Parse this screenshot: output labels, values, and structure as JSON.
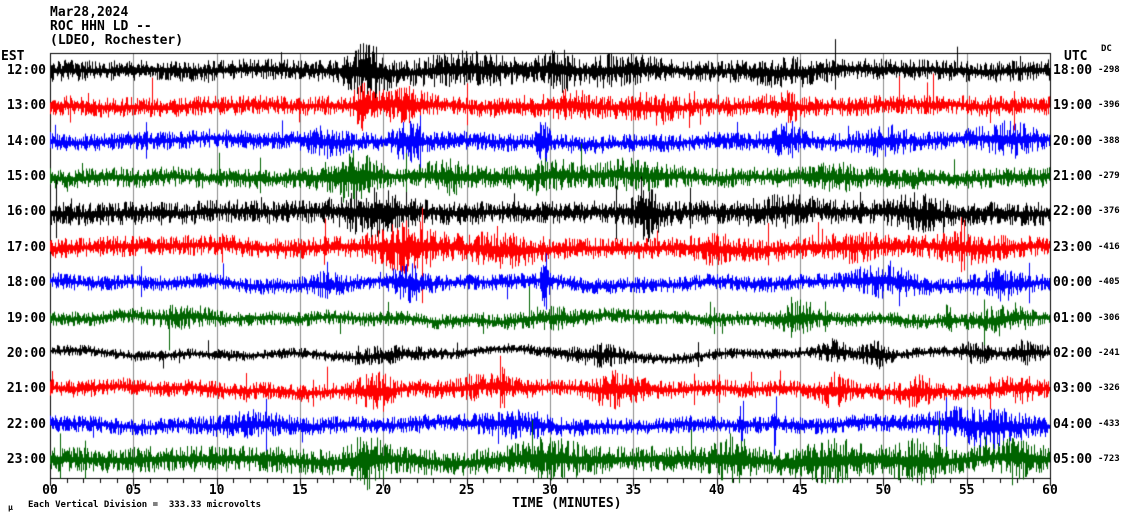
{
  "header": {
    "date": "Mar28,2024",
    "station": "ROC HHN LD --",
    "network": "(LDEO, Rochester)"
  },
  "axes": {
    "left_title": "EST",
    "right_title": "UTC",
    "dc_title": "DC",
    "x_title": "TIME (MINUTES)",
    "minute_labels": [
      "00",
      "05",
      "10",
      "15",
      "20",
      "25",
      "30",
      "35",
      "40",
      "45",
      "50",
      "55",
      "60"
    ],
    "x_min": 0,
    "x_max": 60,
    "minor_tick_every_min": 1,
    "major_tick_every_min": 5,
    "grid_every_min": 5
  },
  "footer": {
    "mu_glyph": "μ",
    "scale_note": "Each Vertical Division =  333.33 microvolts"
  },
  "colors": {
    "background": "#ffffff",
    "axis": "#000000",
    "grid": "#8c8c8c",
    "trace_cycle": [
      "#000000",
      "#ff0000",
      "#0000ff",
      "#006400"
    ]
  },
  "chart_data": {
    "type": "line",
    "xlabel": "TIME (MINUTES)",
    "x_range": [
      0,
      60
    ],
    "rows_are": "one helicorder trace per hour, colors cycle black/red/blue/green",
    "rows": [
      {
        "est": "12:00",
        "utc": "18:00",
        "dc": "-298",
        "color": "#000000",
        "base": 8.5,
        "wander": 2,
        "events": [
          {
            "t": 19,
            "a": 15,
            "w": 1.2
          },
          {
            "t": 25,
            "a": 7,
            "w": 3
          },
          {
            "t": 30.5,
            "a": 11,
            "w": 0.9
          },
          {
            "t": 34,
            "a": 6,
            "w": 2
          },
          {
            "t": 44,
            "a": 5,
            "w": 2
          }
        ]
      },
      {
        "est": "13:00",
        "utc": "19:00",
        "dc": "-396",
        "color": "#ff0000",
        "base": 8,
        "wander": 2,
        "events": [
          {
            "t": 18.7,
            "a": 16,
            "w": 0.5
          },
          {
            "t": 21,
            "a": 8,
            "w": 1.5
          },
          {
            "t": 31,
            "a": 5,
            "w": 2
          },
          {
            "t": 36,
            "a": 6,
            "w": 1.5
          },
          {
            "t": 44,
            "a": 6,
            "w": 1
          }
        ]
      },
      {
        "est": "14:00",
        "utc": "20:00",
        "dc": "-388",
        "color": "#0000ff",
        "base": 7.5,
        "wander": 2.5,
        "events": [
          {
            "t": 16.5,
            "a": 6,
            "w": 1.2
          },
          {
            "t": 21.5,
            "a": 12,
            "w": 0.8
          },
          {
            "t": 29.6,
            "a": 14,
            "w": 0.3
          },
          {
            "t": 44,
            "a": 7,
            "w": 1
          },
          {
            "t": 50,
            "a": 6,
            "w": 1.5
          },
          {
            "t": 57.5,
            "a": 8,
            "w": 1.5
          }
        ]
      },
      {
        "est": "15:00",
        "utc": "21:00",
        "dc": "-279",
        "color": "#006400",
        "base": 8,
        "wander": 2,
        "events": [
          {
            "t": 18,
            "a": 13,
            "w": 1.5
          },
          {
            "t": 24,
            "a": 7,
            "w": 1.5
          },
          {
            "t": 30,
            "a": 6,
            "w": 2
          },
          {
            "t": 35,
            "a": 6,
            "w": 2
          },
          {
            "t": 47,
            "a": 5,
            "w": 1.5
          }
        ]
      },
      {
        "est": "16:00",
        "utc": "22:00",
        "dc": "-376",
        "color": "#000000",
        "base": 9.5,
        "wander": 2,
        "events": [
          {
            "t": 19.5,
            "a": 11,
            "w": 2
          },
          {
            "t": 35.8,
            "a": 13,
            "w": 0.8
          },
          {
            "t": 44,
            "a": 5,
            "w": 2
          },
          {
            "t": 52,
            "a": 7,
            "w": 1.5
          }
        ]
      },
      {
        "est": "17:00",
        "utc": "23:00",
        "dc": "-416",
        "color": "#ff0000",
        "base": 8.5,
        "wander": 2.5,
        "events": [
          {
            "t": 21.5,
            "a": 13,
            "w": 2
          },
          {
            "t": 27,
            "a": 7,
            "w": 2
          },
          {
            "t": 40,
            "a": 6,
            "w": 1.5
          },
          {
            "t": 48,
            "a": 5,
            "w": 2
          },
          {
            "t": 55,
            "a": 5,
            "w": 2
          }
        ]
      },
      {
        "est": "18:00",
        "utc": "00:00",
        "dc": "-405",
        "color": "#0000ff",
        "base": 6.5,
        "wander": 3,
        "events": [
          {
            "t": 16.5,
            "a": 5,
            "w": 1
          },
          {
            "t": 21.5,
            "a": 11,
            "w": 1
          },
          {
            "t": 29.7,
            "a": 18,
            "w": 0.25
          },
          {
            "t": 50,
            "a": 8,
            "w": 2
          },
          {
            "t": 57,
            "a": 7,
            "w": 1.5
          }
        ]
      },
      {
        "est": "19:00",
        "utc": "01:00",
        "dc": "-306",
        "color": "#006400",
        "base": 6,
        "wander": 3,
        "events": [
          {
            "t": 8,
            "a": 5,
            "w": 1.5
          },
          {
            "t": 30,
            "a": 4,
            "w": 2
          },
          {
            "t": 45,
            "a": 9,
            "w": 1.2
          },
          {
            "t": 53.9,
            "a": 16,
            "w": 0.15
          },
          {
            "t": 57,
            "a": 7,
            "w": 1.5
          }
        ]
      },
      {
        "est": "20:00",
        "utc": "02:00",
        "dc": "-241",
        "color": "#000000",
        "base": 4.5,
        "wander": 4,
        "events": [
          {
            "t": 20,
            "a": 4,
            "w": 2
          },
          {
            "t": 33,
            "a": 6,
            "w": 1.5
          },
          {
            "t": 47,
            "a": 7,
            "w": 0.8
          },
          {
            "t": 49.5,
            "a": 9,
            "w": 0.8
          },
          {
            "t": 55.5,
            "a": 6,
            "w": 0.8
          },
          {
            "t": 58.5,
            "a": 7,
            "w": 1
          }
        ]
      },
      {
        "est": "21:00",
        "utc": "03:00",
        "dc": "-326",
        "color": "#ff0000",
        "base": 7,
        "wander": 3,
        "events": [
          {
            "t": 19.5,
            "a": 11,
            "w": 1
          },
          {
            "t": 26,
            "a": 5,
            "w": 2
          },
          {
            "t": 34,
            "a": 9,
            "w": 1.5
          },
          {
            "t": 47,
            "a": 9,
            "w": 0.8
          },
          {
            "t": 52,
            "a": 7,
            "w": 1
          },
          {
            "t": 58,
            "a": 6,
            "w": 1
          }
        ]
      },
      {
        "est": "22:00",
        "utc": "04:00",
        "dc": "-433",
        "color": "#0000ff",
        "base": 7,
        "wander": 2.5,
        "events": [
          {
            "t": 12,
            "a": 5,
            "w": 2
          },
          {
            "t": 28,
            "a": 6,
            "w": 2
          },
          {
            "t": 41.5,
            "a": 20,
            "w": 0.12
          },
          {
            "t": 43.5,
            "a": 26,
            "w": 0.1
          },
          {
            "t": 56,
            "a": 11,
            "w": 2.5
          }
        ]
      },
      {
        "est": "23:00",
        "utc": "05:00",
        "dc": "-723",
        "color": "#006400",
        "base": 10.5,
        "wander": 2.5,
        "events": [
          {
            "t": 19,
            "a": 13,
            "w": 1
          },
          {
            "t": 30,
            "a": 7,
            "w": 2
          },
          {
            "t": 41,
            "a": 11,
            "w": 1
          },
          {
            "t": 47,
            "a": 8,
            "w": 2
          },
          {
            "t": 52,
            "a": 9,
            "w": 1.5
          },
          {
            "t": 58,
            "a": 9,
            "w": 1
          }
        ]
      }
    ]
  }
}
